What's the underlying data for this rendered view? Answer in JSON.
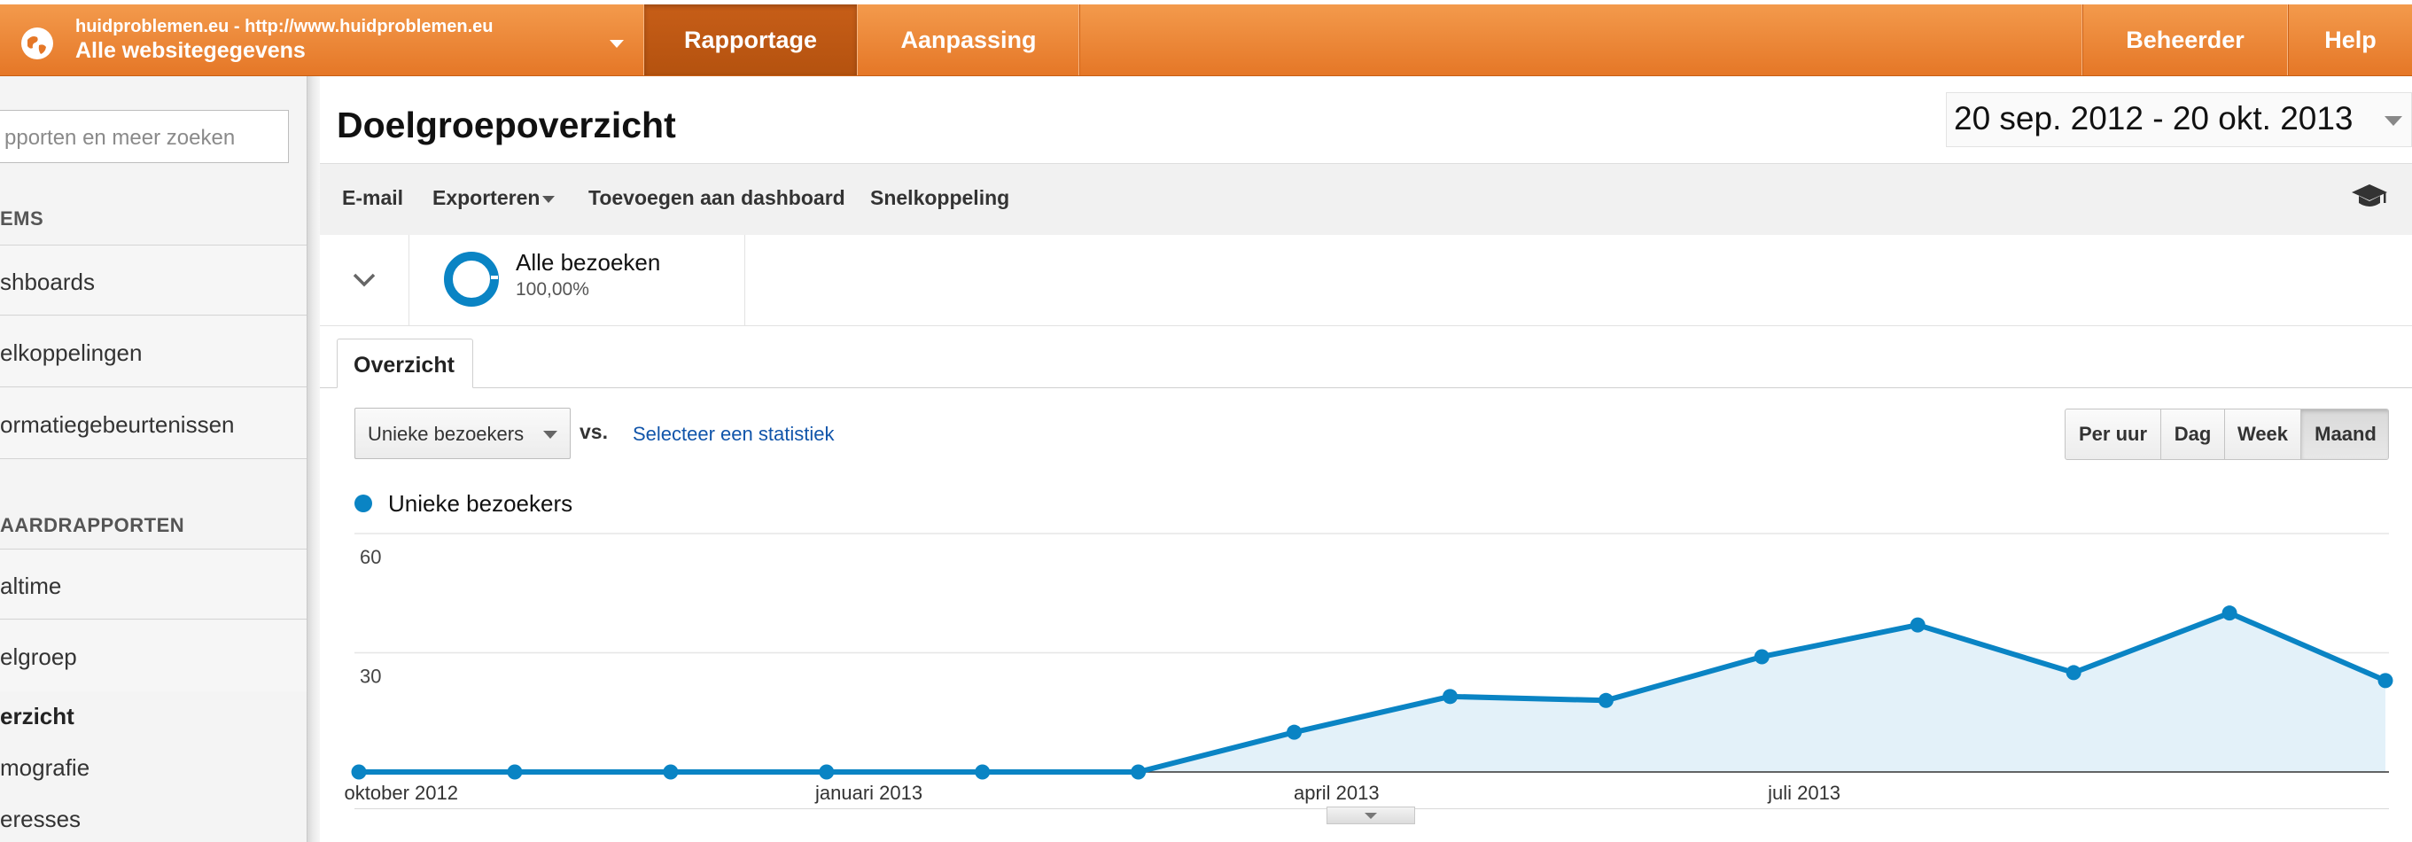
{
  "topbar": {
    "profile_url": "huidproblemen.eu - http://www.huidproblemen.eu",
    "profile_name": "Alle websitegegevens",
    "nav_tabs": [
      "Rapportage",
      "Aanpassing"
    ],
    "right_tabs": [
      "Beheerder",
      "Help"
    ],
    "accent_color": "#e57727"
  },
  "sidebar": {
    "search_placeholder": "pporten en meer zoeken",
    "header_items": "EMS",
    "items": [
      "shboards",
      "elkoppelingen",
      "ormatiegebeurtenissen"
    ],
    "header_reports": "AARDRAPPORTEN",
    "report_items": [
      "altime",
      "elgroep"
    ],
    "subitems": [
      "erzicht",
      "mografie",
      "eresses"
    ]
  },
  "main": {
    "title": "Doelgroepoverzicht",
    "date_range": "20 sep. 2012 - 20 okt. 2013",
    "toolbar": {
      "email": "E-mail",
      "export": "Exporteren",
      "add_dashboard": "Toevoegen aan dashboard",
      "shortcut": "Snelkoppeling"
    },
    "segment": {
      "name": "Alle bezoeken",
      "percent": "100,00%"
    },
    "tab": "Overzicht",
    "metric": "Unieke bezoekers",
    "vs": "vs.",
    "select_stat": "Selecteer een statistiek",
    "granularity": [
      "Per uur",
      "Dag",
      "Week",
      "Maand"
    ],
    "granularity_selected": "Maand"
  },
  "chart_data": {
    "type": "area",
    "series": [
      {
        "name": "Unieke bezoekers",
        "color": "#0a84c4",
        "values": [
          0,
          0,
          0,
          0,
          0,
          0,
          10,
          19,
          18,
          29,
          37,
          25,
          40,
          23
        ]
      }
    ],
    "x_labels": [
      "oktober 2012",
      "januari 2013",
      "april 2013",
      "juli 2013"
    ],
    "x_label_index": [
      0.3,
      3.3,
      6.3,
      9.3
    ],
    "y_ticks": [
      30,
      60
    ],
    "ylim": [
      0,
      60
    ],
    "grid": true,
    "legend": "top-left"
  }
}
